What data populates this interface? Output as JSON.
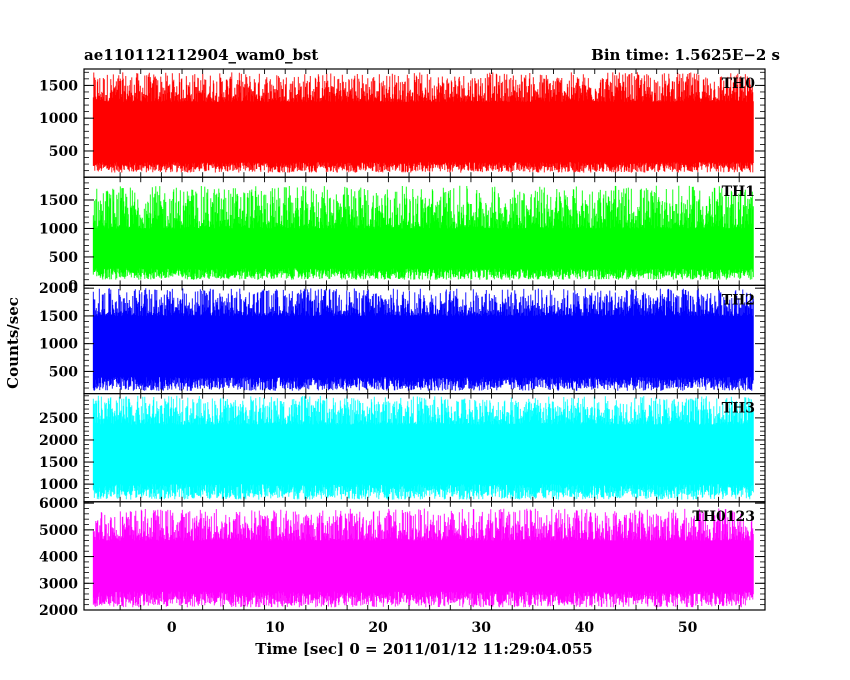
{
  "header": {
    "title": "ae110112112904_wam0_bst",
    "bin_time": "Bin time: 1.5625E−2 s"
  },
  "chart_data": {
    "type": "line",
    "title": "ae110112112904_wam0_bst",
    "xlabel": "Time [sec] 0 = 2011/01/12 11:29:04.055",
    "ylabel": "Counts/sec",
    "xlim": [
      -8.5,
      57.5
    ],
    "x_ticks": [
      0,
      10,
      20,
      30,
      40,
      50
    ],
    "x_tick_labels": [
      "0",
      "10",
      "20",
      "30",
      "40",
      "50"
    ],
    "data_x_range": [
      -7.6,
      56.4
    ],
    "grid": false,
    "panels": [
      {
        "name": "TH0",
        "color": "#ff0000",
        "ylim": [
          100,
          1750
        ],
        "y_ticks": [
          500,
          1000,
          1500
        ],
        "y_tick_labels": [
          "500",
          "1000",
          "1500"
        ],
        "band_low": [
          170,
          330
        ],
        "band_high": [
          1250,
          1700
        ]
      },
      {
        "name": "TH1",
        "color": "#00ff00",
        "ylim": [
          0,
          1900
        ],
        "y_ticks": [
          0,
          500,
          1000,
          1500
        ],
        "y_tick_labels": [
          "0",
          "500",
          "1000",
          "1500"
        ],
        "band_low": [
          100,
          300
        ],
        "band_high": [
          1000,
          1750
        ]
      },
      {
        "name": "TH2",
        "color": "#0000ff",
        "ylim": [
          100,
          2050
        ],
        "y_ticks": [
          500,
          1000,
          1500,
          2000
        ],
        "y_tick_labels": [
          "500",
          "1000",
          "1500",
          "2000"
        ],
        "band_low": [
          150,
          400
        ],
        "band_high": [
          1500,
          2000
        ]
      },
      {
        "name": "TH3",
        "color": "#00ffff",
        "ylim": [
          600,
          3050
        ],
        "y_ticks": [
          1000,
          1500,
          2000,
          2500
        ],
        "y_tick_labels": [
          "1000",
          "1500",
          "2000",
          "2500"
        ],
        "band_low": [
          650,
          1000
        ],
        "band_high": [
          2350,
          3000
        ]
      },
      {
        "name": "TH0123",
        "color": "#ff00ff",
        "ylim": [
          2000,
          6050
        ],
        "y_ticks": [
          2000,
          3000,
          4000,
          5000,
          6000
        ],
        "y_tick_labels": [
          "2000",
          "3000",
          "4000",
          "5000",
          "6000"
        ],
        "band_low": [
          2100,
          2700
        ],
        "band_high": [
          4600,
          5800
        ]
      }
    ]
  }
}
